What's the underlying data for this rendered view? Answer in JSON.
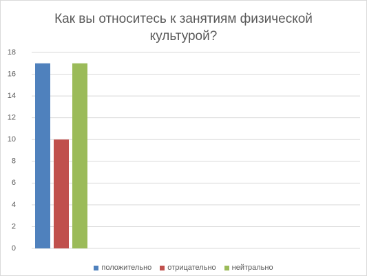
{
  "chart_data": {
    "type": "bar",
    "title": "Как вы относитесь к занятиям физической культурой?",
    "categories": [
      null
    ],
    "series": [
      {
        "name": "положительно",
        "color": "#4f81bd",
        "values": [
          17
        ]
      },
      {
        "name": "отрицательно",
        "color": "#c0504d",
        "values": [
          10
        ]
      },
      {
        "name": "нейтрально",
        "color": "#9bbb59",
        "values": [
          17
        ]
      }
    ],
    "ylim": [
      0,
      18
    ],
    "yticks": [
      0,
      2,
      4,
      6,
      8,
      10,
      12,
      14,
      16,
      18
    ],
    "grid": true,
    "legend": "bottom"
  }
}
